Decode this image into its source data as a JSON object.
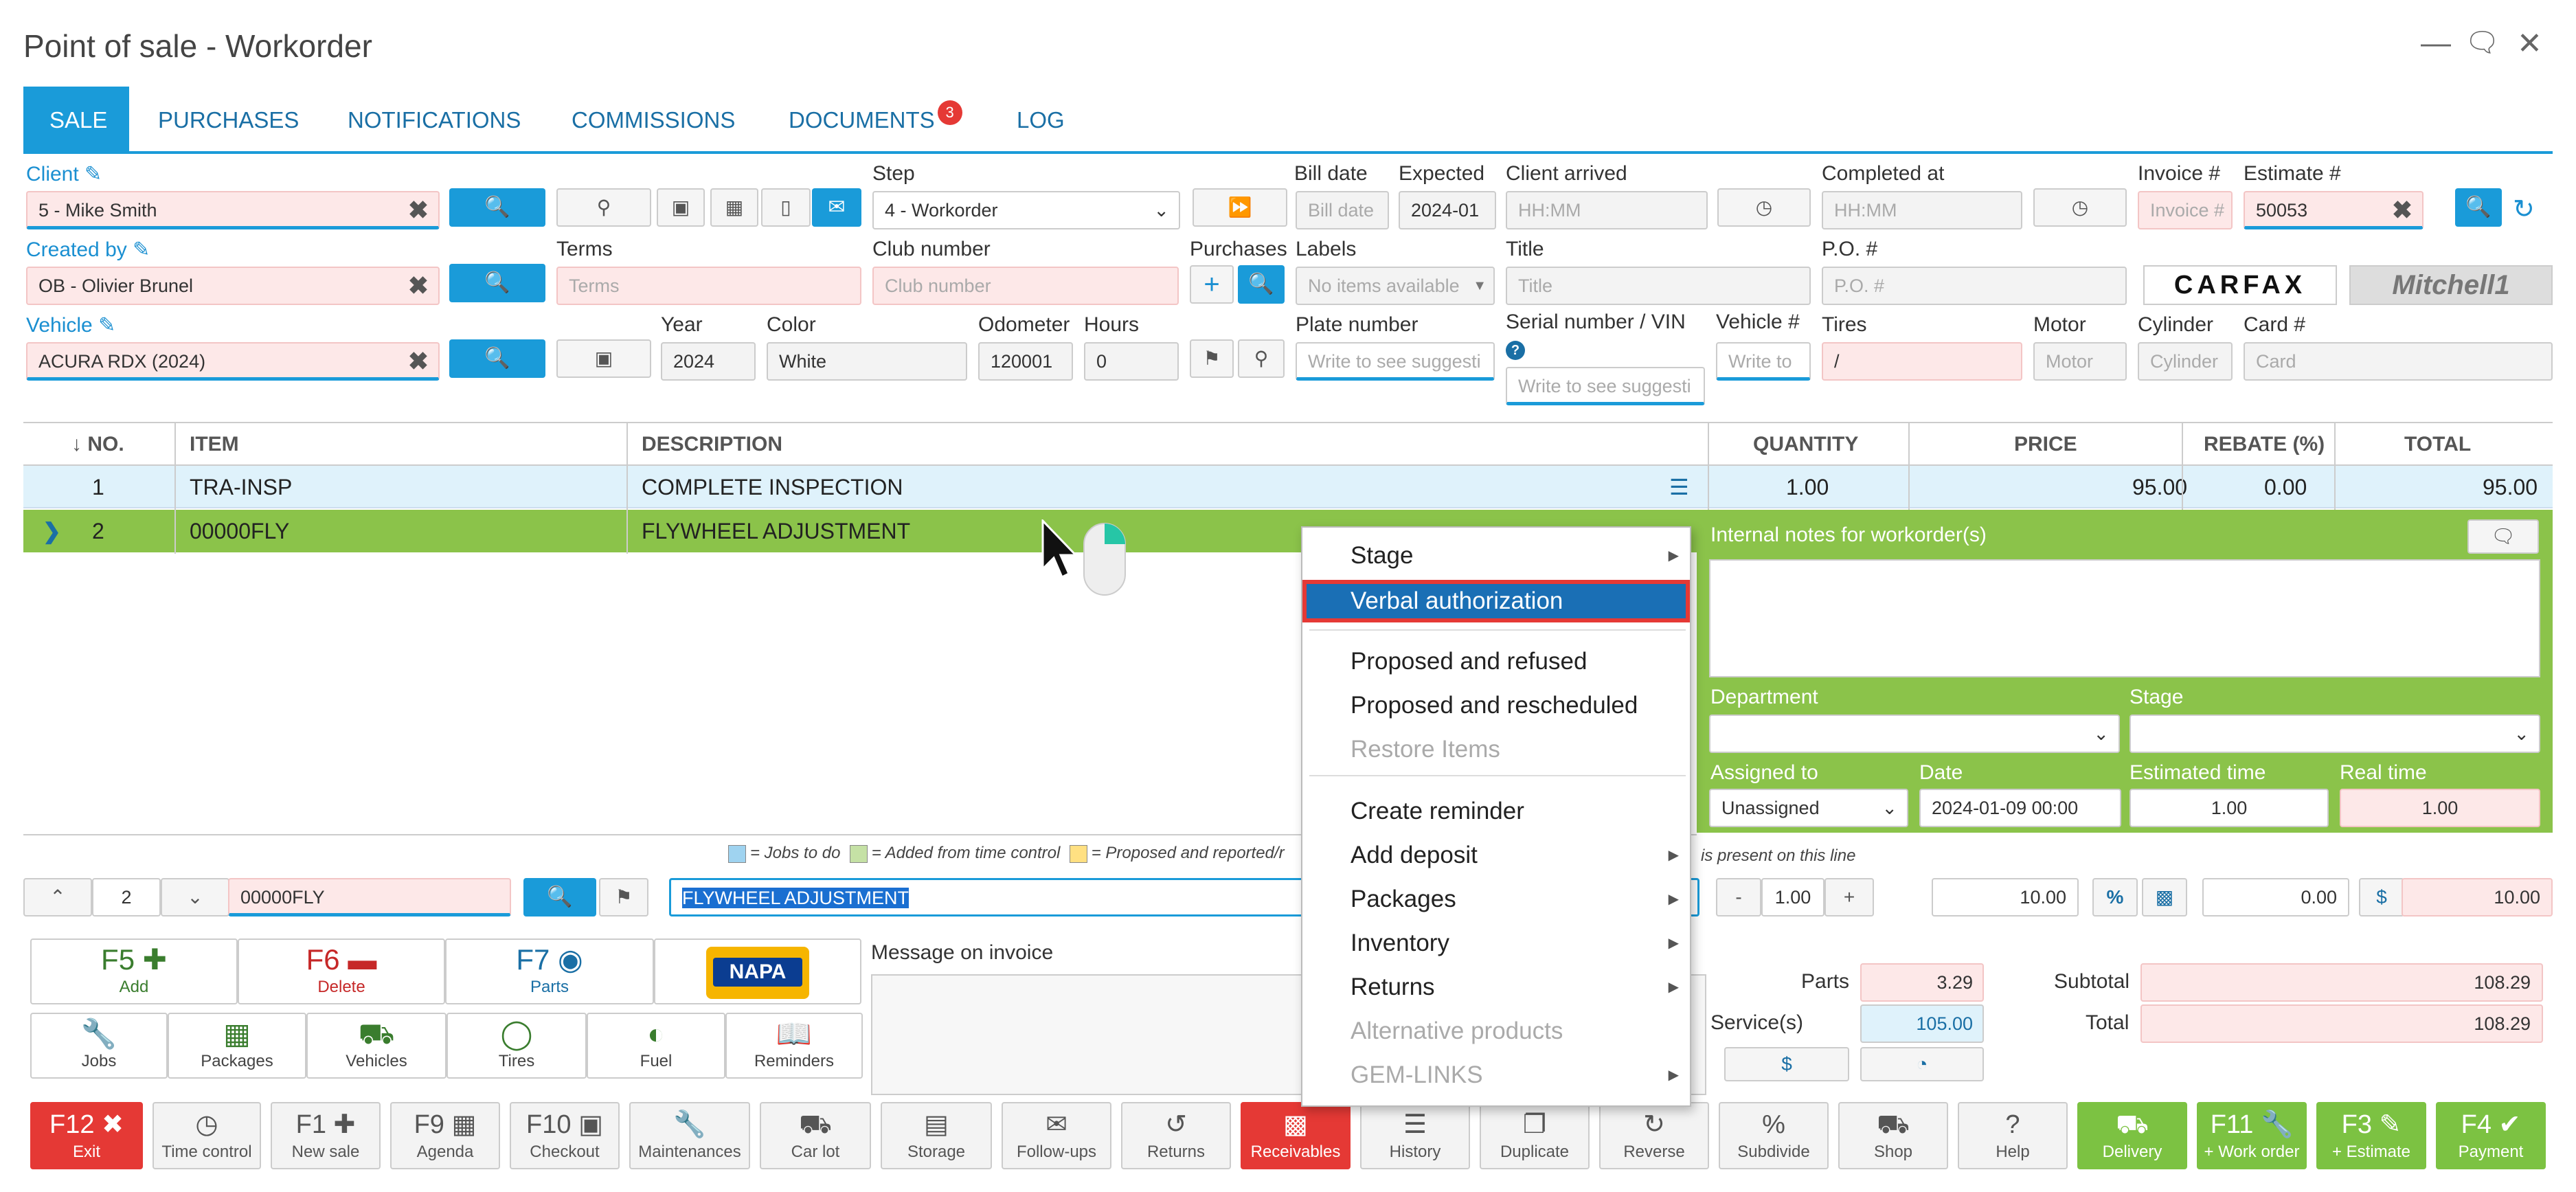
{
  "window": {
    "title": "Point of sale - Workorder"
  },
  "tabs": [
    {
      "label": "SALE",
      "active": true
    },
    {
      "label": "PURCHASES"
    },
    {
      "label": "NOTIFICATIONS"
    },
    {
      "label": "COMMISSIONS"
    },
    {
      "label": "DOCUMENTS",
      "badge": "3"
    },
    {
      "label": "LOG"
    }
  ],
  "form": {
    "client_label": "Client",
    "client_value": "5 - Mike Smith",
    "created_by_label": "Created by",
    "created_by_value": "OB - Olivier Brunel",
    "vehicle_label": "Vehicle",
    "vehicle_value": "ACURA RDX (2024)",
    "step_label": "Step",
    "step_value": "4 - Workorder",
    "terms_label": "Terms",
    "terms_placeholder": "Terms",
    "club_label": "Club number",
    "club_placeholder": "Club number",
    "purchases_label": "Purchases",
    "labels_label": "Labels",
    "labels_placeholder": "No items available",
    "year_label": "Year",
    "year_value": "2024",
    "color_label": "Color",
    "color_value": "White",
    "odometer_label": "Odometer",
    "odometer_value": "120001",
    "hours_label": "Hours",
    "hours_value": "0",
    "bill_date_label": "Bill date",
    "bill_date_placeholder": "Bill date",
    "expected_label": "Expected",
    "expected_value": "2024-01",
    "client_arrived_label": "Client arrived",
    "client_arrived_placeholder": "HH:MM",
    "completed_label": "Completed at",
    "completed_placeholder": "HH:MM",
    "invoice_label": "Invoice #",
    "invoice_placeholder": "Invoice #",
    "estimate_label": "Estimate #",
    "estimate_value": "50053",
    "title_label": "Title",
    "title_placeholder": "Title",
    "po_label": "P.O. #",
    "po_placeholder": "P.O. #",
    "plate_label": "Plate number",
    "plate_placeholder": "Write to see suggesti",
    "serial_label": "Serial number / VIN",
    "serial_placeholder": "Write to see suggesti",
    "vehicle_num_label": "Vehicle #",
    "vehicle_num_placeholder": "Write to",
    "tires_label": "Tires",
    "tires_value": "/",
    "motor_label": "Motor",
    "motor_placeholder": "Motor",
    "cylinder_label": "Cylinder",
    "cylinder_placeholder": "Cylinder",
    "card_label": "Card #",
    "card_placeholder": "Card",
    "carfax": "CARFAX",
    "mitchell": "Mitchell1"
  },
  "grid": {
    "headers": {
      "no": "NO.",
      "item": "ITEM",
      "description": "DESCRIPTION",
      "quantity": "QUANTITY",
      "price": "PRICE",
      "rebate": "REBATE (%)",
      "total": "TOTAL"
    },
    "rows": [
      {
        "no": "1",
        "item": "TRA-INSP",
        "description": "COMPLETE INSPECTION",
        "quantity": "1.00",
        "price": "95.00",
        "rebate": "0.00",
        "total": "95.00"
      },
      {
        "no": "2",
        "item": "00000FLY",
        "description": "FLYWHEEL ADJUSTMENT"
      }
    ]
  },
  "context_menu": {
    "items": [
      {
        "label": "Stage",
        "submenu": true
      },
      {
        "label": "Verbal authorization",
        "highlighted": true
      },
      {
        "label": "Proposed and refused"
      },
      {
        "label": "Proposed and rescheduled"
      },
      {
        "label": "Restore Items",
        "disabled": true
      },
      {
        "label": "Create reminder"
      },
      {
        "label": "Add deposit",
        "submenu": true
      },
      {
        "label": "Packages",
        "submenu": true
      },
      {
        "label": "Inventory",
        "submenu": true
      },
      {
        "label": "Returns",
        "submenu": true
      },
      {
        "label": "Alternative products",
        "disabled": true
      },
      {
        "label": "GEM-LINKS",
        "submenu": true,
        "disabled": true
      }
    ]
  },
  "panel": {
    "notes_label": "Internal notes for workorder(s)",
    "department_label": "Department",
    "stage_label": "Stage",
    "assigned_label": "Assigned to",
    "assigned_value": "Unassigned",
    "date_label": "Date",
    "date_value": "2024-01-09 00:00",
    "est_time_label": "Estimated time",
    "est_time_value": "1.00",
    "real_time_label": "Real time",
    "real_time_value": "1.00"
  },
  "legend": {
    "jobs": "= Jobs to do",
    "added": "= Added from time control",
    "proposed": "= Proposed and reported/r",
    "present": "is present on this line"
  },
  "editor": {
    "line": "2",
    "item_code": "00000FLY",
    "description": "FLYWHEEL ADJUSTMENT",
    "qty": "1.00",
    "price": "10.00",
    "rebate": "0.00",
    "total": "10.00"
  },
  "fkeys": [
    {
      "key": "F5",
      "label": "Add",
      "icon": "plus-icon"
    },
    {
      "key": "F6",
      "label": "Delete",
      "icon": "minus-icon"
    },
    {
      "key": "F7",
      "label": "Parts",
      "icon": "globe-icon"
    },
    {
      "key": "",
      "label": "NAPA",
      "icon": "napa-logo"
    }
  ],
  "quick": [
    {
      "label": "Jobs"
    },
    {
      "label": "Packages"
    },
    {
      "label": "Vehicles"
    },
    {
      "label": "Tires"
    },
    {
      "label": "Fuel"
    },
    {
      "label": "Reminders"
    }
  ],
  "message_label": "Message on invoice",
  "totals": {
    "parts_label": "Parts",
    "parts_value": "3.29",
    "services_label": "Service(s)",
    "services_value": "105.00",
    "subtotal_label": "Subtotal",
    "subtotal_value": "108.29",
    "total_label": "Total",
    "total_value": "108.29",
    "dollar": "$"
  },
  "bottombar": [
    {
      "key": "F12",
      "label": "Exit",
      "style": "red"
    },
    {
      "key": "",
      "label": "Time control"
    },
    {
      "key": "F1",
      "label": "New sale"
    },
    {
      "key": "F9",
      "label": "Agenda"
    },
    {
      "key": "F10",
      "label": "Checkout"
    },
    {
      "key": "",
      "label": "Maintenances"
    },
    {
      "key": "",
      "label": "Car lot"
    },
    {
      "key": "",
      "label": "Storage"
    },
    {
      "key": "",
      "label": "Follow-ups"
    },
    {
      "key": "",
      "label": "Returns"
    },
    {
      "key": "",
      "label": "Receivables",
      "style": "red"
    },
    {
      "key": "",
      "label": "History"
    },
    {
      "key": "",
      "label": "Duplicate"
    },
    {
      "key": "",
      "label": "Reverse"
    },
    {
      "key": "",
      "label": "Subdivide"
    },
    {
      "key": "",
      "label": "Shop"
    },
    {
      "key": "",
      "label": "Help"
    },
    {
      "key": "",
      "label": "Delivery",
      "style": "green"
    },
    {
      "key": "F11",
      "label": "+ Work order",
      "style": "green"
    },
    {
      "key": "F3",
      "label": "+ Estimate",
      "style": "green"
    },
    {
      "key": "F4",
      "label": "Payment",
      "style": "green"
    }
  ]
}
